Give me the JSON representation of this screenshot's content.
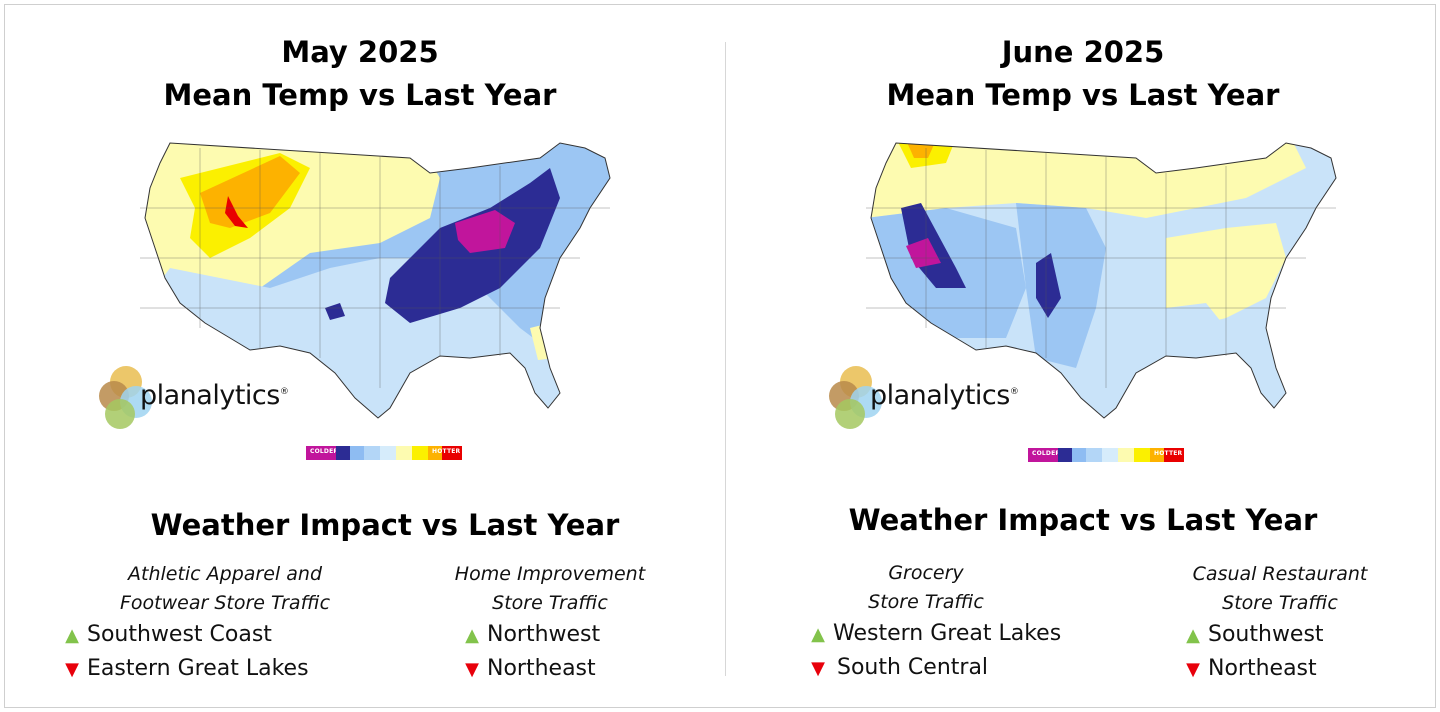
{
  "panels": [
    {
      "title_line1": "May 2025",
      "title_line2": "Mean Temp vs Last Year",
      "logo_text": "planalytics",
      "legend": {
        "colder": "COLDER",
        "hotter": "HOTTER"
      },
      "impact_title": "Weather Impact vs Last Year",
      "columns": [
        {
          "category_line1": "Athletic Apparel and",
          "category_line2": "Footwear Store Traffic",
          "up": "Southwest Coast",
          "down": "Eastern Great Lakes"
        },
        {
          "category_line1": "Home Improvement",
          "category_line2": "Store Traffic",
          "up": "Northwest",
          "down": "Northeast"
        }
      ]
    },
    {
      "title_line1": "June 2025",
      "title_line2": "Mean Temp vs Last Year",
      "logo_text": "planalytics",
      "legend": {
        "colder": "COLDER",
        "hotter": "HOTTER"
      },
      "impact_title": "Weather Impact vs Last Year",
      "columns": [
        {
          "category_line1": "Grocery",
          "category_line2": "Store Traffic",
          "up": "Western Great Lakes",
          "down": "South Central"
        },
        {
          "category_line1": "Casual Restaurant",
          "category_line2": "Store Traffic",
          "up": "Southwest",
          "down": "Northeast"
        }
      ]
    }
  ],
  "legend_colors": [
    "#c1159c",
    "#2c2c94",
    "#8ebcf2",
    "#b3d6f7",
    "#d6ecfb",
    "#fdfbb0",
    "#fbf000",
    "#fdb200",
    "#e90000"
  ],
  "map_colors": {
    "much_colder": "#c1159c",
    "colder": "#2c2c94",
    "cool": "#9cc6f3",
    "slightly_cool": "#c9e3f9",
    "slightly_warm": "#fdfbb0",
    "warm": "#fbf000",
    "warmer": "#fdb200",
    "hottest": "#e90000"
  },
  "up_arrow": "▲",
  "down_arrow": "▼"
}
